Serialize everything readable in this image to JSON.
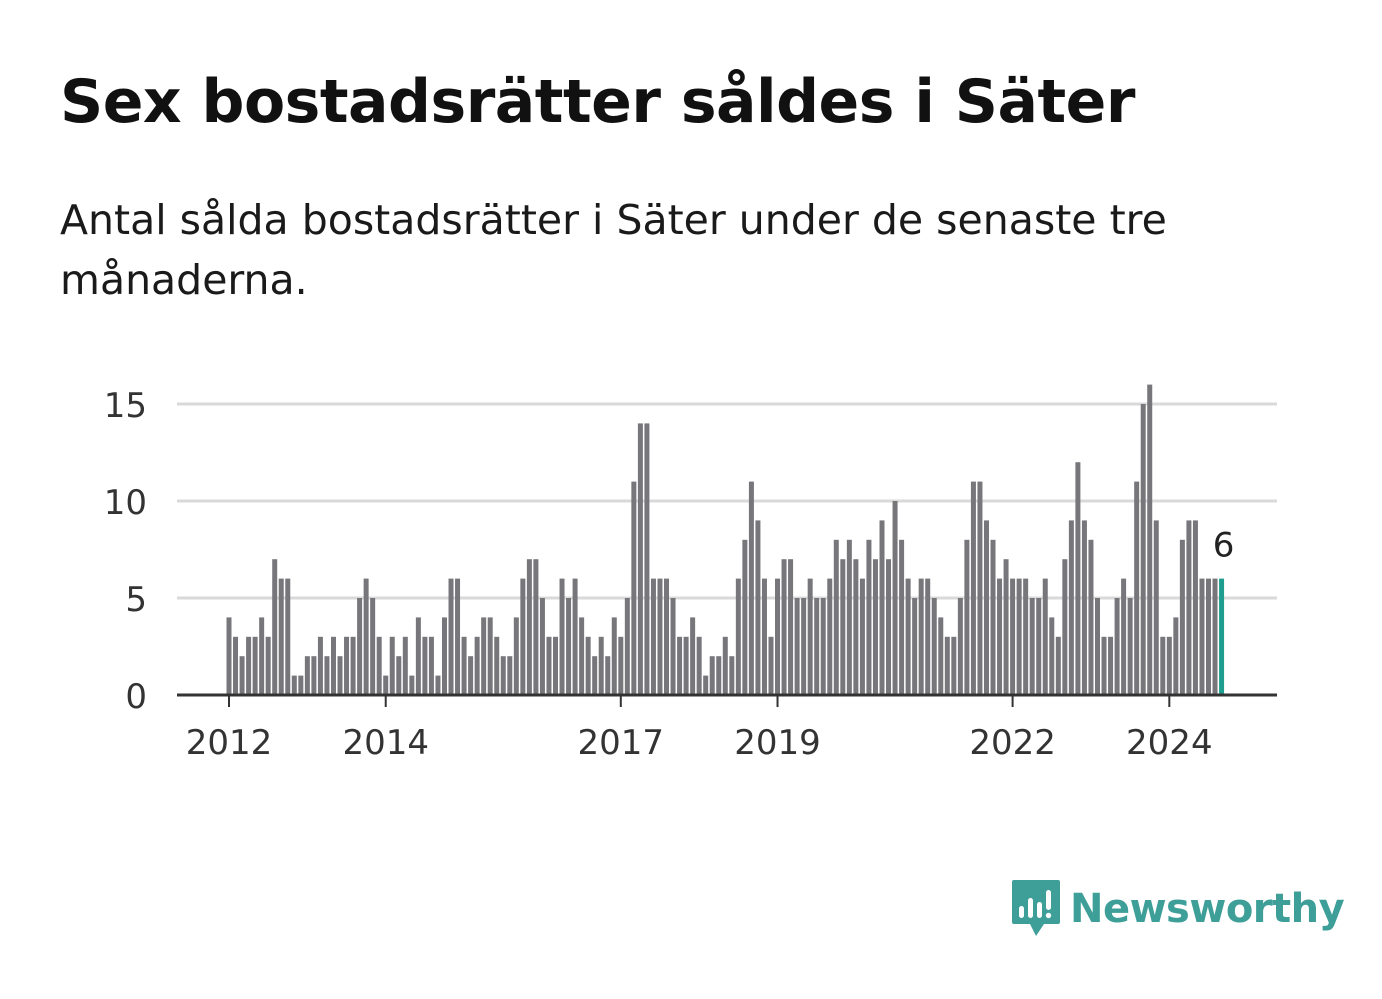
{
  "title": "Sex bostadsrätter såldes i Säter",
  "subtitle": "Antal sålda bostadsrätter i Säter under de senaste tre månaderna.",
  "brand": {
    "name": "Newsworthy",
    "color": "#3e9e98",
    "icon": "newsworthy-bar-chart-icon"
  },
  "colors": {
    "bar": "#77767b",
    "highlight": "#1f9e8f",
    "grid": "#d9d9d9",
    "axis": "#333333"
  },
  "chart_data": {
    "type": "bar",
    "title": "Sex bostadsrätter såldes i Säter",
    "xlabel": "",
    "ylabel": "",
    "ylim": [
      0,
      17
    ],
    "yticks": [
      0,
      5,
      10,
      15
    ],
    "xticks": [
      {
        "label": "2012",
        "index": 0
      },
      {
        "label": "2014",
        "index": 24
      },
      {
        "label": "2017",
        "index": 60
      },
      {
        "label": "2019",
        "index": 84
      },
      {
        "label": "2022",
        "index": 120
      },
      {
        "label": "2024",
        "index": 144
      }
    ],
    "start": "2012-01",
    "values": [
      4,
      3,
      2,
      3,
      3,
      4,
      3,
      7,
      6,
      6,
      1,
      1,
      2,
      2,
      3,
      2,
      3,
      2,
      3,
      3,
      5,
      6,
      5,
      3,
      1,
      3,
      2,
      3,
      1,
      4,
      3,
      3,
      1,
      4,
      6,
      6,
      3,
      2,
      3,
      4,
      4,
      3,
      2,
      2,
      4,
      6,
      7,
      7,
      5,
      3,
      3,
      6,
      5,
      6,
      4,
      3,
      2,
      3,
      2,
      4,
      3,
      5,
      11,
      14,
      14,
      6,
      6,
      6,
      5,
      3,
      3,
      4,
      3,
      1,
      2,
      2,
      3,
      2,
      6,
      8,
      11,
      9,
      6,
      3,
      6,
      7,
      7,
      5,
      5,
      6,
      5,
      5,
      6,
      8,
      7,
      8,
      7,
      6,
      8,
      7,
      9,
      7,
      10,
      8,
      6,
      5,
      6,
      6,
      5,
      4,
      3,
      3,
      5,
      8,
      11,
      11,
      9,
      8,
      6,
      7,
      6,
      6,
      6,
      5,
      5,
      6,
      4,
      3,
      7,
      9,
      12,
      9,
      8,
      5,
      3,
      3,
      5,
      6,
      5,
      11,
      15,
      16,
      9,
      3,
      3,
      4,
      8,
      9,
      9,
      6,
      6,
      6,
      6
    ],
    "highlight_last": true,
    "annotation": {
      "index": 152,
      "text": "6"
    }
  }
}
